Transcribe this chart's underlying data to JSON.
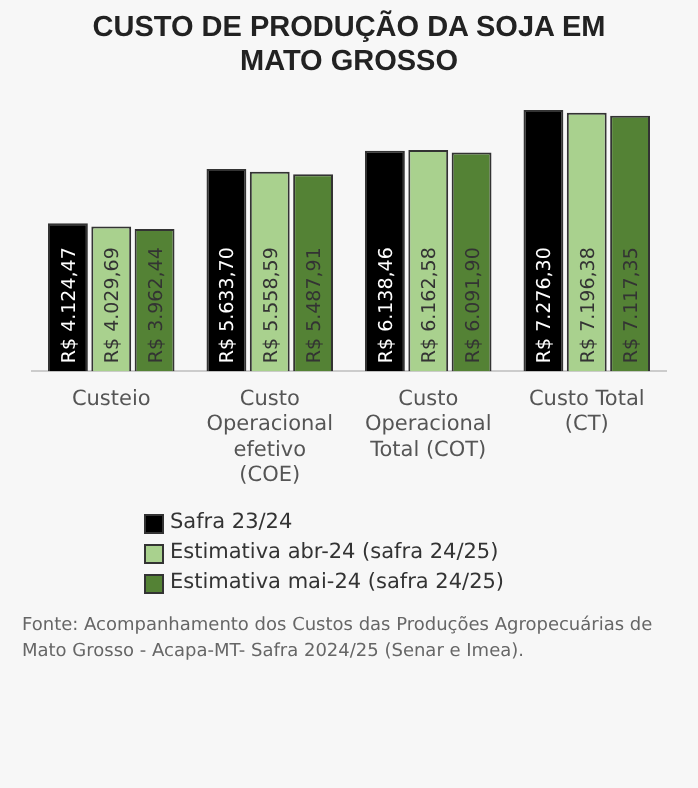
{
  "chart_data": {
    "type": "bar",
    "title": "CUSTO DE PRODUÇÃO DA SOJA EM MATO GROSSO",
    "relative": false,
    "categories": [
      "Custeio",
      "Custo Operacional efetivo (COE)",
      "Custo Operacional Total (COT)",
      "Custo Total (CT)"
    ],
    "series": [
      {
        "name": "Safra 23/24",
        "color": "#000000",
        "values": [
          4124.47,
          5633.7,
          6138.46,
          7276.3
        ],
        "value_labels": [
          "R$ 4.124,47",
          "R$ 5.633,70",
          "R$ 6.138,46",
          "R$ 7.276,30"
        ]
      },
      {
        "name": "Estimativa abr-24 (safra 24/25)",
        "color": "#a9d18e",
        "values": [
          4029.69,
          5558.59,
          6162.58,
          7196.38
        ],
        "value_labels": [
          "R$ 4.029,69",
          "R$ 5.558,59",
          "R$ 6.162,58",
          "R$ 7.196,38"
        ]
      },
      {
        "name": "Estimativa mai-24 (safra 24/25)",
        "color": "#548235",
        "values": [
          3962.44,
          5487.91,
          6091.9,
          7117.35
        ],
        "value_labels": [
          "R$ 3.962,44",
          "R$ 5.487,91",
          "R$ 6.091,90",
          "R$ 7.117,35"
        ]
      }
    ],
    "legend": "bottom",
    "grid": false,
    "annotations": [
      "Fonte: Acompanhamento dos Custos das Produções Agropecuárias de Mato Grosso - Acapa-MT- Safra 2024/25 (Senar e Imea)."
    ]
  }
}
